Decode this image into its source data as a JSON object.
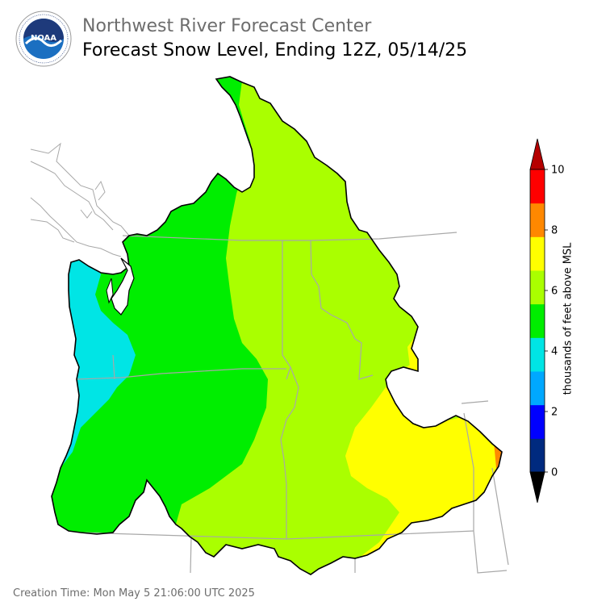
{
  "header": {
    "org": "Northwest River Forecast Center",
    "title": "Forecast Snow Level, Ending 12Z, 05/14/25"
  },
  "logo": {
    "text": "NOAA",
    "ring_text": "NATIONAL OCEANIC AND ATMOSPHERIC ADMINISTRATION · U.S. DEPARTMENT OF COMMERCE",
    "colors": {
      "ring": "#ffffff",
      "blue": "#1b6fc1",
      "navy": "#1e3a7b"
    }
  },
  "legend": {
    "label": "thousands of feet above MSL",
    "ticks": [
      "0",
      "2",
      "4",
      "6",
      "8",
      "10"
    ],
    "colors": [
      "#000000",
      "#002a7f",
      "#0000ff",
      "#00a8ff",
      "#00e5e5",
      "#00ee00",
      "#aaff00",
      "#ffff00",
      "#ff8800",
      "#ff0000",
      "#b50000"
    ]
  },
  "footer": {
    "creation_time": "Creation Time: Mon May 5 21:06:00 UTC 2025"
  }
}
